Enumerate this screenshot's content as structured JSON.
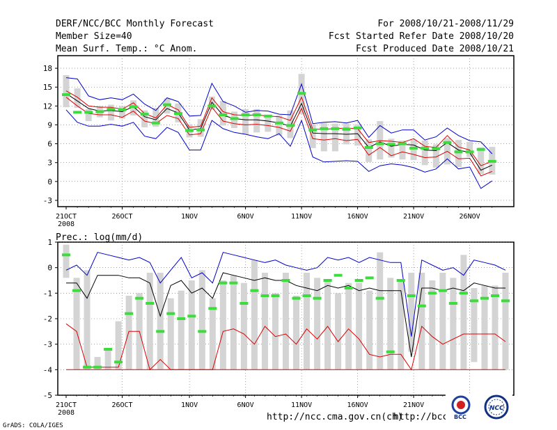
{
  "header": {
    "title": "DERF/NCC/BCC Monthly Forecast",
    "member": "Member Size=40",
    "variable": "Mean Surf. Temp.: °C Anom.",
    "period": "For 2008/10/21-2008/11/29",
    "started": "Fcst Started Refer Date 2008/10/20",
    "produced": "Fcst Produced Date 2008/10/21"
  },
  "footer": {
    "url1": "http://ncc.cma.gov.cn(ch)",
    "url2": "http://bcc.c",
    "grads": "GrADS: COLA/IGES",
    "logo_bcc": "BCC",
    "logo_ncc": "NCC"
  },
  "colors": {
    "box": "#d4d4d4",
    "obs": "#3cdc3c",
    "spread": "#0000cc",
    "member": "#dd0000",
    "mean": "#000000"
  },
  "chart_data": [
    {
      "type": "line",
      "title": "Mean Surf. Temp.: °C Anom.",
      "x_ticks": [
        "21OCT\n2008",
        "26OCT",
        "1NOV",
        "6NOV",
        "11NOV",
        "16NOV",
        "21NOV",
        "26NOV"
      ],
      "x_tick_days": [
        0,
        5,
        11,
        16,
        21,
        26,
        31,
        36
      ],
      "ylim": [
        -4,
        20
      ],
      "yticks": [
        -3,
        0,
        3,
        6,
        9,
        12,
        15,
        18
      ],
      "series": [
        {
          "name": "upper",
          "values": [
            16.5,
            16.3,
            13.6,
            13.0,
            13.3,
            13.0,
            13.9,
            12.3,
            11.3,
            13.3,
            12.7,
            10.4,
            10.5,
            15.6,
            12.7,
            12.0,
            11.0,
            11.3,
            11.2,
            10.7,
            10.6,
            15.5,
            9.2,
            9.4,
            9.5,
            9.3,
            9.7,
            7.0,
            8.9,
            7.7,
            8.2,
            8.2,
            6.6,
            7.1,
            8.5,
            7.3,
            6.5,
            6.3,
            4.4
          ]
        },
        {
          "name": "red_high",
          "values": [
            14.4,
            13.4,
            12.0,
            11.8,
            11.8,
            11.5,
            12.5,
            10.8,
            10.1,
            12.2,
            11.4,
            8.6,
            8.8,
            13.3,
            11.1,
            10.6,
            10.5,
            10.6,
            10.4,
            10.3,
            9.7,
            13.4,
            8.3,
            8.3,
            8.4,
            8.5,
            8.4,
            6.2,
            6.5,
            6.4,
            6.2,
            6.8,
            5.6,
            5.4,
            7.3,
            5.5,
            5.0,
            2.5,
            3.2
          ]
        },
        {
          "name": "mean",
          "values": [
            14.0,
            12.8,
            11.6,
            11.2,
            11.3,
            11.1,
            11.9,
            10.3,
            9.8,
            11.6,
            10.9,
            8.2,
            8.4,
            12.6,
            10.5,
            10.0,
            9.8,
            9.8,
            9.6,
            9.3,
            8.8,
            12.4,
            7.7,
            7.6,
            7.6,
            7.5,
            7.6,
            5.4,
            6.3,
            5.6,
            5.9,
            5.8,
            5.0,
            4.9,
            6.2,
            5.0,
            4.6,
            1.8,
            2.6
          ]
        },
        {
          "name": "red_low",
          "values": [
            13.4,
            12.0,
            10.8,
            10.6,
            10.6,
            10.2,
            11.2,
            9.6,
            9.2,
            10.5,
            10.0,
            7.4,
            7.6,
            11.8,
            9.6,
            9.2,
            9.0,
            9.1,
            8.9,
            8.6,
            8.0,
            11.6,
            6.8,
            6.6,
            6.8,
            6.5,
            6.7,
            4.2,
            5.4,
            4.1,
            4.7,
            4.3,
            3.8,
            3.9,
            4.8,
            3.6,
            3.7,
            0.9,
            1.6
          ]
        },
        {
          "name": "lower",
          "values": [
            11.4,
            9.4,
            8.8,
            8.8,
            9.1,
            8.8,
            9.4,
            7.2,
            6.8,
            8.6,
            7.8,
            5.0,
            5.0,
            9.7,
            8.4,
            7.8,
            7.5,
            7.1,
            6.8,
            7.6,
            5.6,
            9.7,
            3.9,
            3.1,
            3.2,
            3.3,
            3.2,
            1.6,
            2.5,
            2.8,
            2.6,
            2.2,
            1.5,
            2.0,
            3.6,
            2.0,
            2.3,
            -1.1,
            0.1
          ]
        }
      ],
      "boxes": {
        "high": [
          16.9,
          14.8,
          11.5,
          12.0,
          12.2,
          12.0,
          12.9,
          11.3,
          11.7,
          13.2,
          12.4,
          9.1,
          9.9,
          13.5,
          12.8,
          11.1,
          11.5,
          11.5,
          10.6,
          10.5,
          11.3,
          17.1,
          9.1,
          9.3,
          9.2,
          9.2,
          9.1,
          6.7,
          9.6,
          6.8,
          6.5,
          6.6,
          6.5,
          5.9,
          6.9,
          6.6,
          6.3,
          5.4,
          5.5
        ],
        "low": [
          11.8,
          11.7,
          9.6,
          10.2,
          9.7,
          10.0,
          10.5,
          8.6,
          8.7,
          10.8,
          9.4,
          7.0,
          7.1,
          11.4,
          8.9,
          8.5,
          7.5,
          7.8,
          7.9,
          7.3,
          6.9,
          10.7,
          5.3,
          4.8,
          4.8,
          5.9,
          5.7,
          3.1,
          3.5,
          3.8,
          3.5,
          3.4,
          2.6,
          2.2,
          2.7,
          2.3,
          3.9,
          1.2,
          1.1
        ]
      },
      "observed": [
        13.8,
        11.0,
        11.0,
        11.1,
        11.5,
        11.4,
        11.9,
        10.7,
        9.3,
        12.2,
        10.8,
        8.1,
        8.2,
        12.0,
        10.6,
        10.0,
        10.6,
        10.6,
        10.4,
        9.3,
        8.9,
        14.0,
        8.2,
        8.4,
        8.4,
        8.3,
        8.5,
        5.4,
        6.0,
        5.9,
        6.0,
        5.3,
        5.3,
        5.2,
        6.2,
        4.7,
        4.7,
        5.1,
        3.2
      ]
    },
    {
      "type": "line",
      "title": "Prec.: log(mm/d)",
      "x_ticks": [
        "21OCT\n2008",
        "26OCT",
        "1NOV",
        "6NOV",
        "11NOV",
        "16NOV",
        "21NOV",
        "26NOV"
      ],
      "x_tick_days": [
        0,
        5,
        11,
        16,
        21,
        26,
        31,
        36
      ],
      "ylim": [
        -5,
        1
      ],
      "yticks": [
        -5,
        -4,
        -3,
        -2,
        -1,
        0,
        1
      ],
      "series": [
        {
          "name": "upper",
          "values": [
            -0.1,
            0.1,
            -0.3,
            0.6,
            0.5,
            0.4,
            0.3,
            0.4,
            0.2,
            -0.6,
            -0.1,
            0.4,
            -0.4,
            -0.2,
            -0.6,
            0.6,
            0.5,
            0.4,
            0.3,
            0.2,
            0.3,
            0.1,
            0.0,
            -0.1,
            0.0,
            0.4,
            0.3,
            0.4,
            0.2,
            0.4,
            0.3,
            0.2,
            0.2,
            -2.7,
            0.3,
            0.1,
            -0.1,
            0.0,
            -0.3,
            0.3,
            0.2,
            0.1,
            -0.1
          ]
        },
        {
          "name": "mean",
          "values": [
            -0.6,
            -0.6,
            -1.2,
            -0.3,
            -0.3,
            -0.3,
            -0.4,
            -0.4,
            -0.6,
            -1.9,
            -0.7,
            -0.5,
            -1.0,
            -0.8,
            -1.2,
            -0.2,
            -0.3,
            -0.4,
            -0.5,
            -0.4,
            -0.5,
            -0.5,
            -0.7,
            -0.8,
            -0.9,
            -0.7,
            -0.8,
            -0.7,
            -0.9,
            -0.8,
            -0.9,
            -0.9,
            -0.9,
            -3.5,
            -0.8,
            -0.8,
            -0.9,
            -0.8,
            -0.9,
            -0.6,
            -0.7,
            -0.8,
            -0.8
          ]
        },
        {
          "name": "red",
          "values": [
            -2.2,
            -2.5,
            -3.9,
            -3.9,
            -3.9,
            -3.9,
            -2.5,
            -2.5,
            -4.0,
            -3.6,
            -4.0,
            -4.0,
            -4.0,
            -4.0,
            -4.0,
            -2.5,
            -2.4,
            -2.6,
            -3.0,
            -2.3,
            -2.7,
            -2.6,
            -3.0,
            -2.4,
            -2.8,
            -2.3,
            -2.9,
            -2.4,
            -2.8,
            -3.4,
            -3.5,
            -3.4,
            -3.4,
            -4.0,
            -2.3,
            -2.7,
            -3.0,
            -2.8,
            -2.6,
            -2.6,
            -2.6,
            -2.6,
            -2.9
          ]
        },
        {
          "name": "floor",
          "values": [
            -4.0,
            -4.0,
            -4.0,
            -4.0,
            -4.0,
            -4.0,
            -4.0,
            -4.0,
            -4.0,
            -4.0,
            -4.0,
            -4.0,
            -4.0,
            -4.0,
            -4.0,
            -4.0,
            -4.0,
            -4.0,
            -4.0,
            -4.0,
            -4.0,
            -4.0,
            -4.0,
            -4.0,
            -4.0,
            -4.0,
            -4.0,
            -4.0,
            -4.0,
            -4.0,
            -4.0,
            -4.0,
            -4.0,
            -4.0,
            -4.0,
            -4.0,
            -4.0,
            -4.0,
            -4.0,
            -4.0,
            -4.0,
            -4.0,
            -4.0
          ]
        }
      ],
      "boxes": {
        "high": [
          0.9,
          -0.4,
          -0.1,
          -3.5,
          -3.2,
          -2.1,
          -1.1,
          -1.0,
          -0.2,
          -0.2,
          -1.2,
          -0.9,
          -0.5,
          -0.1,
          -1.2,
          -0.5,
          -0.3,
          -0.6,
          0.3,
          -0.2,
          -1.0,
          -0.2,
          -1.1,
          -0.2,
          -0.4,
          -0.5,
          -1.0,
          -0.6,
          -0.6,
          -0.9,
          0.6,
          -0.4,
          -0.5,
          -0.2,
          -0.2,
          -0.5,
          -0.2,
          -0.4,
          0.5,
          -0.8,
          -0.7,
          -0.7,
          -0.2
        ],
        "low": [
          -0.4,
          -4.0,
          -4.0,
          -4.0,
          -4.0,
          -4.0,
          -4.0,
          -4.0,
          -4.0,
          -4.0,
          -4.0,
          -4.0,
          -4.0,
          -4.0,
          -4.0,
          -4.0,
          -4.0,
          -4.0,
          -4.0,
          -4.0,
          -4.0,
          -4.0,
          -4.0,
          -4.0,
          -4.0,
          -4.0,
          -4.0,
          -4.0,
          -4.0,
          -4.0,
          -4.0,
          -4.0,
          -4.0,
          -3.3,
          -4.0,
          -4.0,
          -4.0,
          -4.0,
          -4.0,
          -3.7,
          -4.0,
          -4.0,
          -4.0
        ]
      },
      "observed": [
        0.5,
        -0.9,
        -3.9,
        -3.9,
        -3.2,
        -3.7,
        -1.8,
        -1.2,
        -1.4,
        -2.5,
        -1.8,
        -2.0,
        -1.9,
        -2.5,
        -1.6,
        -0.6,
        -0.6,
        -1.4,
        -0.9,
        -1.1,
        -1.1,
        -0.5,
        -1.2,
        -1.1,
        -1.2,
        -0.5,
        -0.3,
        -0.8,
        -0.5,
        -0.4,
        -1.2,
        -3.3,
        -0.5,
        -1.1,
        -1.5,
        -1.0,
        -0.9,
        -1.4,
        -1.0,
        -1.3,
        -1.2,
        -1.1,
        -1.3
      ]
    }
  ]
}
